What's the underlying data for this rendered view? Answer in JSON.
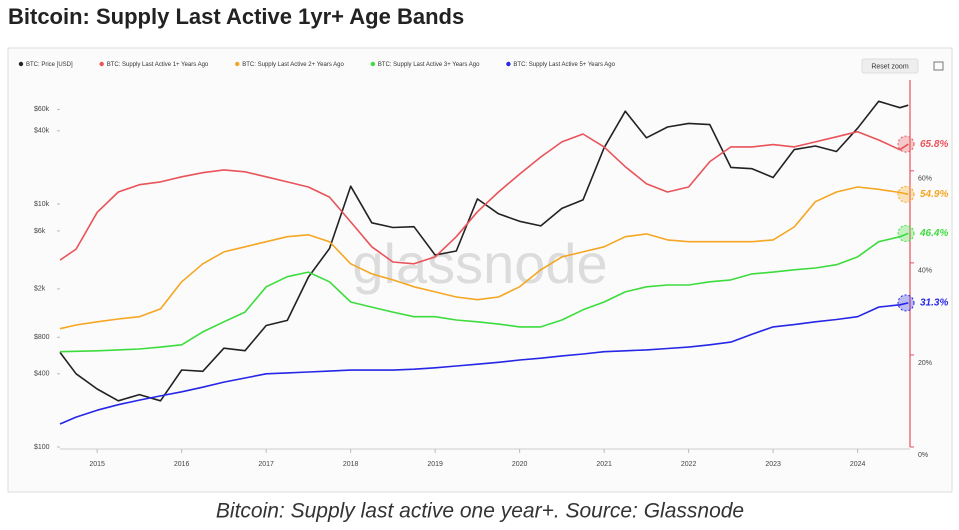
{
  "chart_data": {
    "type": "line",
    "title": "Bitcoin: Supply Last Active 1yr+ Age Bands",
    "reset_button": "Reset zoom",
    "watermark": "glassnode",
    "x": [
      2014.56,
      2014.75,
      2015,
      2015.25,
      2015.5,
      2015.75,
      2016,
      2016.25,
      2016.5,
      2016.75,
      2017,
      2017.25,
      2017.5,
      2017.75,
      2018,
      2018.25,
      2018.5,
      2018.75,
      2019,
      2019.25,
      2019.5,
      2019.75,
      2020,
      2020.25,
      2020.5,
      2020.75,
      2021,
      2021.25,
      2021.5,
      2021.75,
      2022,
      2022.25,
      2022.5,
      2022.75,
      2023,
      2023.25,
      2023.5,
      2023.75,
      2024,
      2024.25,
      2024.5,
      2024.6
    ],
    "xlim": [
      2014.56,
      2024.62
    ],
    "xticks": [
      2015,
      2016,
      2017,
      2018,
      2019,
      2020,
      2021,
      2022,
      2023,
      2024
    ],
    "y_scale": "log",
    "ylim": [
      100,
      90000
    ],
    "yticks": [
      {
        "value": 100,
        "label": "$100"
      },
      {
        "value": 400,
        "label": "$400"
      },
      {
        "value": 800,
        "label": "$800"
      },
      {
        "value": 2000,
        "label": "$2k"
      },
      {
        "value": 6000,
        "label": "$6k"
      },
      {
        "value": 10000,
        "label": "$10k"
      },
      {
        "value": 40000,
        "label": "$40k"
      },
      {
        "value": 60000,
        "label": "$60k"
      }
    ],
    "y2lim": [
      0,
      78
    ],
    "y2ticks": [
      {
        "value": 0,
        "label": "0%"
      },
      {
        "value": 20,
        "label": "20%"
      },
      {
        "value": 40,
        "label": "40%"
      },
      {
        "value": 60,
        "label": "60%"
      }
    ],
    "y2_axis_color": "#e8545a",
    "grid": false,
    "series": [
      {
        "name": "BTC: Price [USD]",
        "color": "#222222",
        "axis": "y",
        "values": [
          600,
          400,
          300,
          240,
          270,
          240,
          430,
          420,
          650,
          620,
          1000,
          1100,
          2500,
          4300,
          14000,
          7000,
          6400,
          6500,
          3800,
          4100,
          11000,
          8300,
          7200,
          6600,
          9200,
          10800,
          29000,
          58000,
          35000,
          43000,
          46000,
          45000,
          20000,
          19500,
          16500,
          28000,
          30000,
          27000,
          42000,
          70000,
          62000,
          65000
        ]
      },
      {
        "name": "BTC: Supply Last Active 1+ Years Ago",
        "color": "#e8545a",
        "axis": "y2",
        "end_label": "65.8%",
        "values": [
          40.6,
          43,
          51,
          55.4,
          57,
          57.6,
          58.7,
          59.6,
          60.2,
          59.8,
          58.7,
          57.6,
          56.5,
          54.3,
          48.9,
          43.5,
          40.2,
          39.8,
          41.3,
          45.7,
          51.1,
          55.4,
          59.3,
          63,
          66.3,
          68,
          65.2,
          60.9,
          57.2,
          55.4,
          56.5,
          62,
          65.2,
          65.2,
          65.7,
          65.2,
          66.3,
          67.4,
          68.5,
          66.7,
          64.6,
          65.8
        ]
      },
      {
        "name": "BTC: Supply Last Active 2+ Years Ago",
        "color": "#f5a623",
        "axis": "y2",
        "end_label": "54.9%",
        "values": [
          25.7,
          26.5,
          27.2,
          27.8,
          28.3,
          30,
          35.9,
          39.8,
          42.4,
          43.5,
          44.6,
          45.7,
          46.1,
          44.6,
          39.8,
          37.6,
          36.3,
          34.8,
          33.7,
          32.6,
          32,
          32.6,
          34.8,
          38.5,
          41.3,
          42.4,
          43.5,
          45.7,
          46.3,
          45,
          44.6,
          44.6,
          44.6,
          44.6,
          45,
          47.8,
          53.3,
          55.4,
          56.5,
          56,
          55.3,
          54.9
        ]
      },
      {
        "name": "BTC: Supply Last Active 3+ Years Ago",
        "color": "#3ddc3d",
        "axis": "y2",
        "end_label": "46.4%",
        "values": [
          20.7,
          20.8,
          20.9,
          21.1,
          21.3,
          21.7,
          22.2,
          25,
          27.2,
          29.3,
          34.8,
          37,
          38,
          35.9,
          31.5,
          30.4,
          29.3,
          28.3,
          28.3,
          27.6,
          27.2,
          26.7,
          26.1,
          26.1,
          27.6,
          29.8,
          31.5,
          33.7,
          34.8,
          35.2,
          35.2,
          35.9,
          36.3,
          37.6,
          38,
          38.5,
          38.9,
          39.6,
          41.3,
          44.6,
          45.7,
          46.4
        ]
      },
      {
        "name": "BTC: Supply Last Active 5+ Years Ago",
        "color": "#2626e6",
        "axis": "y2",
        "end_label": "31.3%",
        "values": [
          5,
          6.5,
          8,
          9.2,
          10.2,
          11.1,
          12,
          13,
          14.1,
          15,
          15.9,
          16.1,
          16.3,
          16.5,
          16.7,
          16.7,
          16.7,
          16.9,
          17.2,
          17.6,
          18,
          18.4,
          18.9,
          19.3,
          19.8,
          20.2,
          20.7,
          20.9,
          21.1,
          21.4,
          21.7,
          22.2,
          22.8,
          24.5,
          26.1,
          26.6,
          27.2,
          27.7,
          28.3,
          30.4,
          30.9,
          31.3
        ]
      }
    ]
  },
  "caption": "Bitcoin: Supply last active one year+. Source: Glassnode"
}
